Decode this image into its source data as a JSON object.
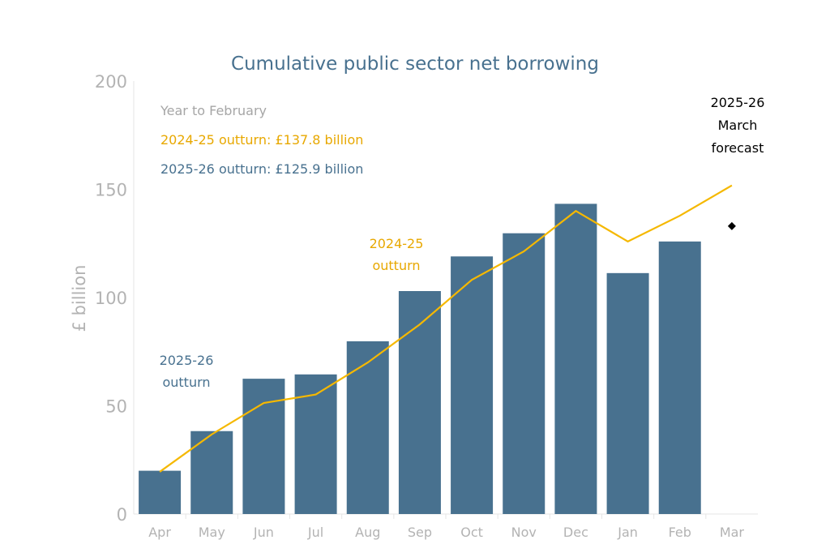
{
  "chart_data": {
    "type": "bar",
    "title": "Cumulative public sector net borrowing",
    "xlabel": "",
    "ylabel": "£ billion",
    "ylim": [
      0,
      200
    ],
    "yticks": [
      "0",
      "50",
      "100",
      "150",
      "200"
    ],
    "grid": false,
    "categories": [
      "Apr",
      "May",
      "Jun",
      "Jul",
      "Aug",
      "Sep",
      "Oct",
      "Nov",
      "Dec",
      "Jan",
      "Feb",
      "Mar"
    ],
    "series": [
      {
        "kind": "bar",
        "label": "2025-26 outturn",
        "color": "#48718f",
        "values": [
          20,
          38.3,
          62.5,
          64.5,
          79.8,
          103,
          119,
          129.7,
          143.3,
          111.3,
          125.9,
          null
        ]
      },
      {
        "kind": "line",
        "label": "2024-25 outturn",
        "color": "#f5b800",
        "values": [
          19.5,
          36.8,
          51.3,
          55.2,
          70,
          87.6,
          108.2,
          121.3,
          140,
          125.9,
          137.8,
          151.8
        ]
      },
      {
        "kind": "point",
        "label": "2025-26 March forecast",
        "color": "#000000",
        "marker": "diamond",
        "category": "Mar",
        "value": 133
      }
    ],
    "annotations": {
      "summary_heading": "Year to February",
      "summary_2024_25": "2024-25 outturn: £137.8 billion",
      "summary_2025_26": "2025-26 outturn: £125.9 billion",
      "bar_label_line1": "2025-26",
      "bar_label_line2": "outturn",
      "line_label_line1": "2024-25",
      "line_label_line2": "outturn",
      "forecast_label_line1": "2025-26",
      "forecast_label_line2": "March",
      "forecast_label_line3": "forecast"
    }
  }
}
